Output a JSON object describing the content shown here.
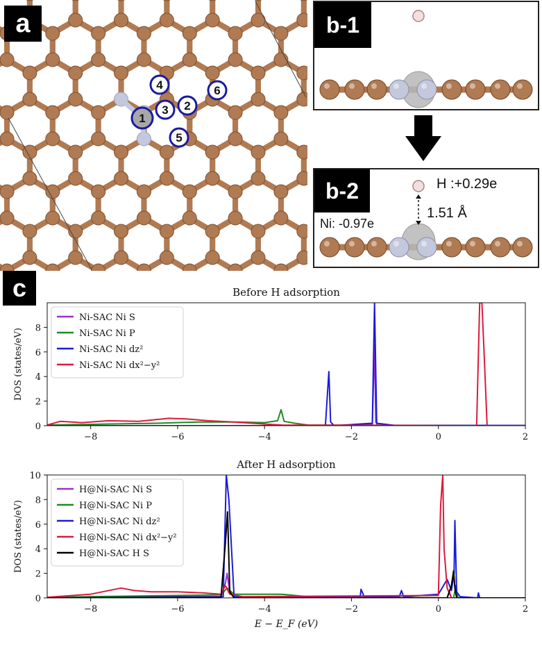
{
  "panels": {
    "a": {
      "tag": "a",
      "sites": [
        "1",
        "2",
        "3",
        "4",
        "5",
        "6"
      ]
    },
    "b1": {
      "tag": "b-1"
    },
    "b2": {
      "tag": "b-2",
      "h_charge": "H :+0.29e",
      "ni_charge": "Ni: -0.97e",
      "distance": "1.51 Å"
    },
    "c": {
      "tag": "c"
    }
  },
  "colors": {
    "carbon": "#b07a52",
    "nitrogen": "#c4c8dc",
    "nickel": "#a8a8a8",
    "hydrogen": "#f2e0e0",
    "site_ring": "#1a1aa0"
  },
  "chart_data": [
    {
      "type": "line",
      "title": "Before H adsorption",
      "ylabel": "DOS (states/eV)",
      "xlabel": "",
      "xlim": [
        -9,
        2
      ],
      "ylim": [
        0,
        10
      ],
      "xticks": [
        "-8",
        "-6",
        "-4",
        "-2",
        "0",
        "2"
      ],
      "yticks": [
        "0",
        "2",
        "4",
        "6",
        "8"
      ],
      "legend": "top-left",
      "legend_entries": [
        "Ni-SAC Ni S",
        "Ni-SAC Ni P",
        "Ni-SAC Ni dz²",
        "Ni-SAC Ni dx²−y²"
      ],
      "series": [
        {
          "name": "Ni-SAC Ni S",
          "color": "#9b30c8",
          "x": [
            -9,
            -2.0,
            -1.52,
            -1.47,
            -1.44,
            -1.4,
            -1.0,
            2
          ],
          "y": [
            0,
            0,
            0.1,
            6.6,
            0.3,
            0.05,
            0,
            0
          ]
        },
        {
          "name": "Ni-SAC Ni P",
          "color": "#1e8c1e",
          "x": [
            -9,
            -6.5,
            -5.5,
            -4.6,
            -4.0,
            -3.7,
            -3.62,
            -3.55,
            -3.3,
            -3.0,
            2
          ],
          "y": [
            0.05,
            0.2,
            0.3,
            0.3,
            0.25,
            0.4,
            1.3,
            0.35,
            0.2,
            0.05,
            0
          ]
        },
        {
          "name": "Ni-SAC Ni dz²",
          "color": "#1a1adc",
          "x": [
            -9,
            -2.6,
            -2.52,
            -2.48,
            -2.4,
            -1.52,
            -1.47,
            -1.42,
            -1.0,
            2
          ],
          "y": [
            0,
            0,
            4.4,
            0.3,
            0,
            0.2,
            10,
            0.2,
            0.02,
            0.02
          ],
          "clip": true
        },
        {
          "name": "Ni-SAC Ni dx²−y²",
          "color": "#dc1a3c",
          "x": [
            -9,
            -8.7,
            -8.2,
            -7.6,
            -6.9,
            -6.2,
            -5.8,
            -5.3,
            -4.7,
            -4.1,
            -3.6,
            0.88,
            0.95,
            1.0,
            1.05,
            1.12,
            2
          ],
          "y": [
            0.05,
            0.35,
            0.25,
            0.4,
            0.35,
            0.6,
            0.55,
            0.4,
            0.3,
            0.15,
            0.05,
            0,
            10,
            10,
            6,
            0,
            0
          ],
          "clip": true
        }
      ]
    },
    {
      "type": "line",
      "title": "After H adsorption",
      "ylabel": "DOS (states/eV)",
      "xlabel": "E − E_F (eV)",
      "xlim": [
        -9,
        2
      ],
      "ylim": [
        0,
        10
      ],
      "xticks": [
        "-8",
        "-6",
        "-4",
        "-2",
        "0",
        "2"
      ],
      "yticks": [
        "0",
        "2",
        "4",
        "6",
        "8",
        "10"
      ],
      "legend": "top-left",
      "legend_entries": [
        "H@Ni-SAC Ni S",
        "H@Ni-SAC Ni P",
        "H@Ni-SAC Ni dz²",
        "H@Ni-SAC Ni dx²−y²",
        "H@Ni-SAC H S"
      ],
      "series": [
        {
          "name": "H@Ni-SAC Ni S",
          "color": "#9b30c8",
          "x": [
            -9,
            -5.0,
            -4.9,
            -4.86,
            -4.8,
            -4.7,
            0.2,
            0.25,
            0.3,
            2
          ],
          "y": [
            0.05,
            0.1,
            1.2,
            2.0,
            0.4,
            0.1,
            0,
            0.5,
            0,
            0
          ]
        },
        {
          "name": "H@Ni-SAC Ni P",
          "color": "#1e8c1e",
          "x": [
            -9,
            -6.0,
            -5.0,
            -4.86,
            -4.7,
            -4.2,
            -3.6,
            -3.0,
            0.35,
            0.4,
            0.45,
            2
          ],
          "y": [
            0.05,
            0.2,
            0.25,
            0.8,
            0.3,
            0.3,
            0.3,
            0.1,
            0,
            1.0,
            0,
            0
          ]
        },
        {
          "name": "H@Ni-SAC Ni dz²",
          "color": "#1a1adc",
          "x": [
            -9,
            -4.95,
            -4.88,
            -4.82,
            -4.7,
            -1.8,
            -1.78,
            -1.7,
            -0.9,
            -0.85,
            -0.8,
            0.0,
            0.1,
            0.2,
            0.3,
            0.36,
            0.38,
            0.42,
            0.5,
            0.9,
            0.92,
            0.95,
            2
          ],
          "y": [
            0,
            0.1,
            10,
            8.0,
            0.1,
            0.05,
            0.7,
            0.05,
            0.1,
            0.6,
            0.1,
            0.3,
            0.9,
            1.5,
            0.6,
            2.0,
            6.3,
            0.5,
            0.1,
            0,
            0.4,
            0,
            0
          ],
          "clip": true
        },
        {
          "name": "H@Ni-SAC Ni dx²−y²",
          "color": "#dc1a3c",
          "x": [
            -9,
            -8.0,
            -7.3,
            -7.0,
            -6.6,
            -6.0,
            -5.4,
            -5.0,
            -4.9,
            -4.8,
            -4.5,
            0.0,
            0.05,
            0.1,
            0.13,
            0.2,
            0.3,
            2
          ],
          "y": [
            0.05,
            0.3,
            0.8,
            0.6,
            0.5,
            0.5,
            0.4,
            0.3,
            1.0,
            0.3,
            0.1,
            0.2,
            7.5,
            10,
            4.0,
            0.8,
            0,
            0
          ],
          "clip": true
        },
        {
          "name": "H@Ni-SAC H S",
          "color": "#000000",
          "x": [
            -9,
            -5.0,
            -4.9,
            -4.85,
            -4.8,
            -4.7,
            0.2,
            0.3,
            0.35,
            0.38,
            0.42,
            2
          ],
          "y": [
            0,
            0.05,
            4.5,
            7.0,
            0.5,
            0,
            0,
            1.0,
            2.2,
            0.8,
            0,
            0
          ]
        }
      ]
    }
  ]
}
